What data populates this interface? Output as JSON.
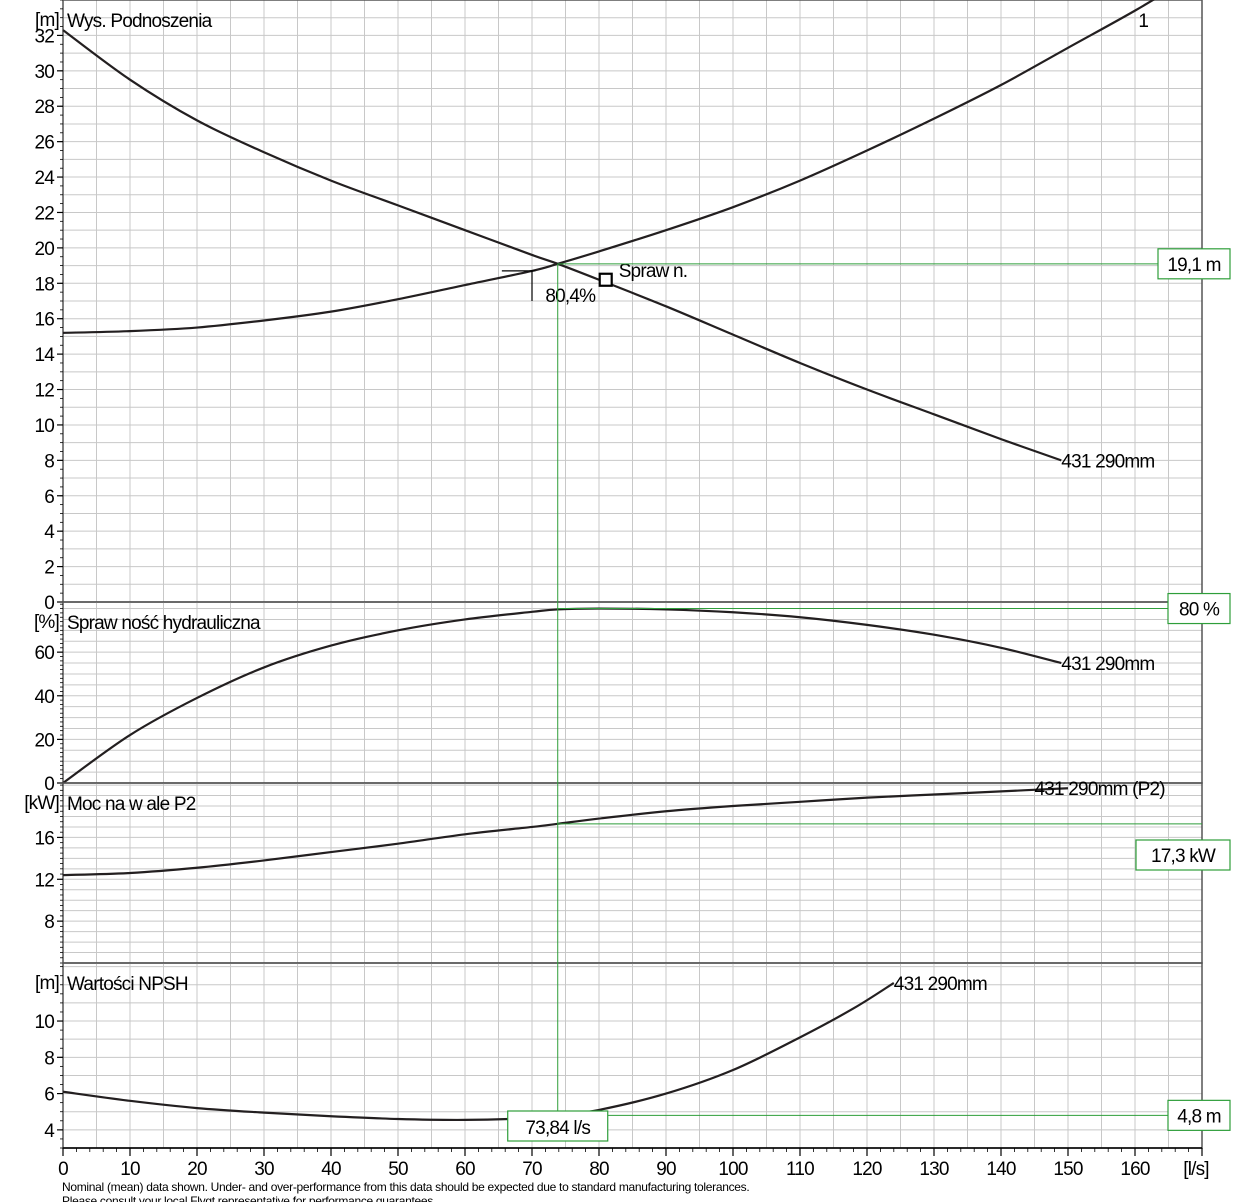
{
  "chart_data": [
    {
      "type": "line",
      "title": "Wys. Podnoszenia",
      "ylabel": "[m]",
      "xlabel": "[l/s]",
      "xlim": [
        0,
        170
      ],
      "ylim": [
        0,
        34
      ],
      "yticks": [
        0,
        2,
        4,
        6,
        8,
        10,
        12,
        14,
        16,
        18,
        20,
        22,
        24,
        26,
        28,
        30,
        32
      ],
      "series": [
        {
          "name": "431 290mm",
          "x": [
            0,
            10,
            20,
            30,
            40,
            50,
            60,
            70,
            73.84,
            80,
            90,
            100,
            110,
            120,
            130,
            140,
            149
          ],
          "values": [
            32.3,
            29.5,
            27.2,
            25.4,
            23.8,
            22.4,
            21.0,
            19.6,
            19.1,
            18.2,
            16.7,
            15.1,
            13.5,
            12.0,
            10.6,
            9.2,
            8.0
          ]
        },
        {
          "name": "1",
          "x": [
            0,
            10,
            20,
            30,
            40,
            50,
            60,
            70,
            73.84,
            80,
            90,
            100,
            110,
            120,
            130,
            140,
            150,
            160,
            167
          ],
          "values": [
            15.2,
            15.3,
            15.5,
            15.9,
            16.4,
            17.1,
            17.9,
            18.7,
            19.1,
            19.8,
            21.0,
            22.3,
            23.8,
            25.5,
            27.3,
            29.2,
            31.3,
            33.4,
            35.0
          ]
        }
      ],
      "annotations": {
        "duty_value": "19,1 m",
        "efficiency_label": "80,4%",
        "marker_label": "Spraw n.",
        "curve_label": "431 290mm",
        "system_curve_label": "1"
      }
    },
    {
      "type": "line",
      "title": "Spraw ność hydrauliczna",
      "ylabel": "[%]",
      "xlim": [
        0,
        170
      ],
      "ylim": [
        0,
        83
      ],
      "yticks": [
        0,
        20,
        40,
        60
      ],
      "series": [
        {
          "name": "431 290mm",
          "x": [
            0,
            10,
            20,
            30,
            40,
            50,
            60,
            70,
            73.84,
            80,
            90,
            100,
            110,
            120,
            130,
            140,
            149
          ],
          "values": [
            0,
            22,
            39,
            53,
            63,
            70,
            75,
            78.5,
            79.6,
            80.0,
            79.6,
            78.3,
            76.0,
            72.5,
            68.0,
            62.0,
            55.0
          ]
        }
      ],
      "annotations": {
        "duty_value": "80 %",
        "curve_label": "431 290mm"
      }
    },
    {
      "type": "line",
      "title": "Moc na w ale P2",
      "ylabel": "[kW]",
      "xlim": [
        0,
        170
      ],
      "ylim": [
        4,
        21.2
      ],
      "yticks": [
        8,
        12,
        16
      ],
      "series": [
        {
          "name": "431 290mm (P2)",
          "x": [
            0,
            10,
            20,
            30,
            40,
            50,
            60,
            70,
            73.84,
            80,
            90,
            100,
            110,
            120,
            130,
            140,
            150
          ],
          "values": [
            12.4,
            12.6,
            13.1,
            13.8,
            14.6,
            15.4,
            16.3,
            17.0,
            17.3,
            17.8,
            18.5,
            19.0,
            19.4,
            19.8,
            20.1,
            20.4,
            20.7
          ]
        }
      ],
      "annotations": {
        "duty_value": "17,3 kW",
        "curve_label": "431 290mm (P2)"
      }
    },
    {
      "type": "line",
      "title": "Wartości NPSH",
      "ylabel": "[m]",
      "xlim": [
        0,
        170
      ],
      "ylim": [
        3,
        13.2
      ],
      "yticks": [
        4,
        6,
        8,
        10
      ],
      "series": [
        {
          "name": "431 290mm",
          "x": [
            0,
            10,
            20,
            30,
            40,
            50,
            60,
            70,
            73.84,
            80,
            90,
            100,
            110,
            118,
            124
          ],
          "values": [
            6.1,
            5.6,
            5.2,
            4.95,
            4.75,
            4.6,
            4.55,
            4.65,
            4.8,
            5.1,
            6.0,
            7.3,
            9.1,
            10.7,
            12.1
          ]
        }
      ],
      "annotations": {
        "duty_value": "4,8 m",
        "flow_value": "73,84 l/s",
        "curve_label": "431 290mm"
      }
    }
  ],
  "x_axis": {
    "ticks": [
      0,
      10,
      20,
      30,
      40,
      50,
      60,
      70,
      80,
      90,
      100,
      110,
      120,
      130,
      140,
      150,
      160
    ],
    "unit_label": "[l/s]"
  },
  "duty_point": {
    "flow": 73.84,
    "head": 19.1,
    "efficiency_marker_flow": 81.0,
    "efficiency_marker_head": 18.2
  },
  "colors": {
    "curve": "#231f20",
    "grid": "#c8c8c8",
    "duty": "#2e9e3a",
    "frame": "#555555"
  },
  "footer": {
    "note_line1": "Nominal (mean) data shown. Under- and over-performance from this data should be expected due to standard manufacturing tolerances.",
    "note_line2": "Please consult your local Flygt representative for performance guarantees."
  }
}
